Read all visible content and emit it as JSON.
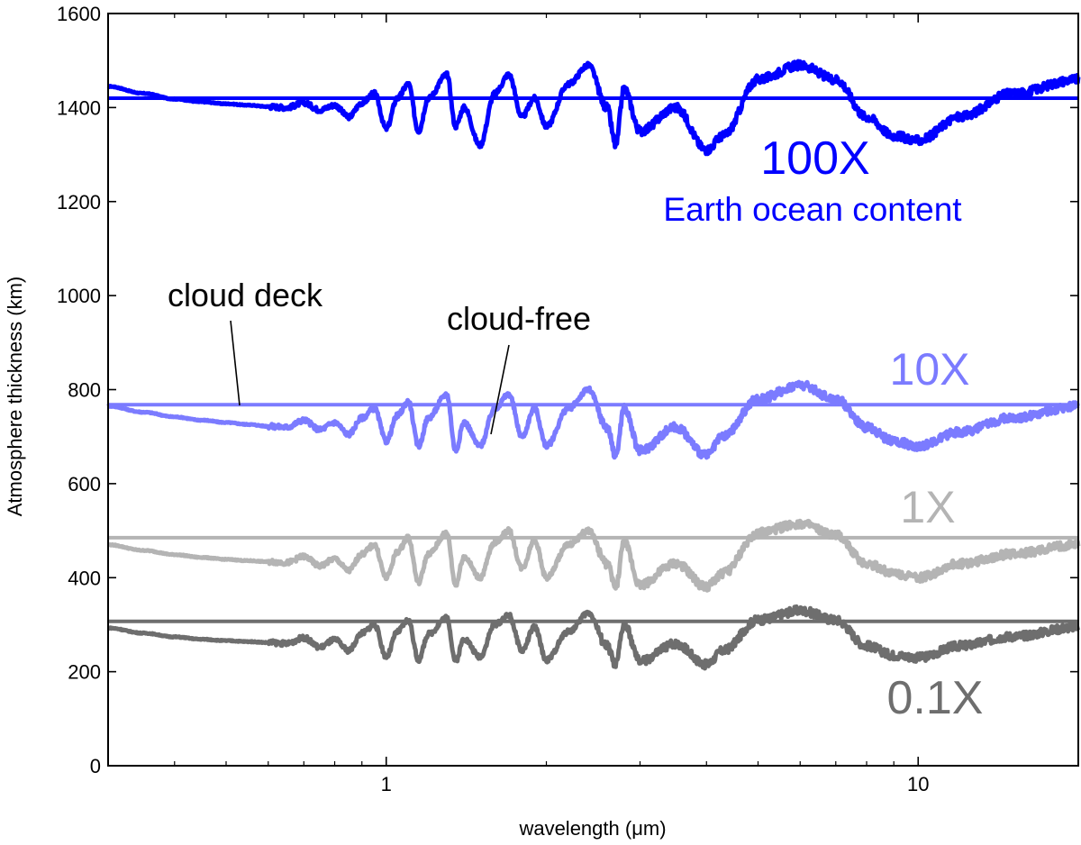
{
  "chart_data": {
    "type": "line",
    "xlabel": "wavelength (μm)",
    "ylabel": "Atmosphere thickness (km)",
    "xscale": "log",
    "xlim": [
      0.3,
      20
    ],
    "ylim": [
      0,
      1600
    ],
    "xticks": [
      1,
      10
    ],
    "xtick_labels": [
      "1",
      "10"
    ],
    "yticks": [
      0,
      200,
      400,
      600,
      800,
      1000,
      1200,
      1400,
      1600
    ],
    "ytick_labels": [
      "0",
      "200",
      "400",
      "600",
      "800",
      "1000",
      "1200",
      "1400",
      "1600"
    ],
    "grid": false,
    "x_knots": [
      0.3,
      0.35,
      0.4,
      0.45,
      0.5,
      0.55,
      0.6,
      0.65,
      0.7,
      0.75,
      0.8,
      0.85,
      0.9,
      0.95,
      1.0,
      1.05,
      1.1,
      1.15,
      1.2,
      1.3,
      1.35,
      1.4,
      1.5,
      1.6,
      1.7,
      1.8,
      1.9,
      2.0,
      2.2,
      2.4,
      2.6,
      2.7,
      2.8,
      3.0,
      3.5,
      4.0,
      4.3,
      5.0,
      6.0,
      7.0,
      8.0,
      9.0,
      10.0,
      12.0,
      15.0,
      20.0
    ],
    "series": [
      {
        "label": "100X",
        "color": "#0000ff",
        "cloud_deck": 1420,
        "values": [
          1445,
          1430,
          1418,
          1412,
          1408,
          1405,
          1402,
          1400,
          1410,
          1395,
          1405,
          1380,
          1410,
          1430,
          1355,
          1420,
          1450,
          1350,
          1420,
          1470,
          1360,
          1400,
          1320,
          1430,
          1470,
          1380,
          1420,
          1360,
          1450,
          1490,
          1400,
          1320,
          1440,
          1350,
          1400,
          1310,
          1340,
          1460,
          1490,
          1460,
          1380,
          1340,
          1330,
          1380,
          1430,
          1460
        ]
      },
      {
        "label": "10X",
        "color": "#7b7bff",
        "cloud_deck": 768,
        "values": [
          765,
          752,
          742,
          735,
          730,
          726,
          722,
          720,
          735,
          715,
          730,
          705,
          740,
          760,
          690,
          745,
          775,
          680,
          740,
          790,
          670,
          730,
          680,
          760,
          790,
          700,
          760,
          680,
          760,
          800,
          720,
          660,
          760,
          670,
          720,
          660,
          700,
          780,
          810,
          780,
          720,
          690,
          680,
          710,
          740,
          765
        ]
      },
      {
        "label": "1X",
        "color": "#b4b4b4",
        "cloud_deck": 485,
        "values": [
          470,
          458,
          449,
          443,
          439,
          436,
          434,
          432,
          445,
          425,
          440,
          415,
          450,
          470,
          400,
          455,
          485,
          390,
          450,
          495,
          385,
          445,
          400,
          475,
          500,
          420,
          480,
          400,
          470,
          500,
          430,
          380,
          475,
          385,
          430,
          380,
          410,
          495,
          515,
          490,
          430,
          410,
          400,
          430,
          450,
          470
        ]
      },
      {
        "label": "0.1X",
        "color": "#6e6e6e",
        "cloud_deck": 307,
        "values": [
          293,
          282,
          274,
          269,
          266,
          264,
          262,
          260,
          272,
          252,
          268,
          245,
          282,
          300,
          232,
          285,
          310,
          225,
          280,
          315,
          222,
          270,
          232,
          300,
          320,
          245,
          295,
          225,
          285,
          325,
          255,
          215,
          300,
          222,
          260,
          215,
          245,
          310,
          330,
          310,
          255,
          235,
          230,
          255,
          275,
          295
        ]
      }
    ],
    "annotations": {
      "label_100x": "100X",
      "label_earth": "Earth ocean content",
      "label_10x": "10X",
      "label_1x": "1X",
      "label_01x": "0.1X",
      "label_cloud_deck": "cloud deck",
      "label_cloud_free": "cloud-free"
    }
  }
}
